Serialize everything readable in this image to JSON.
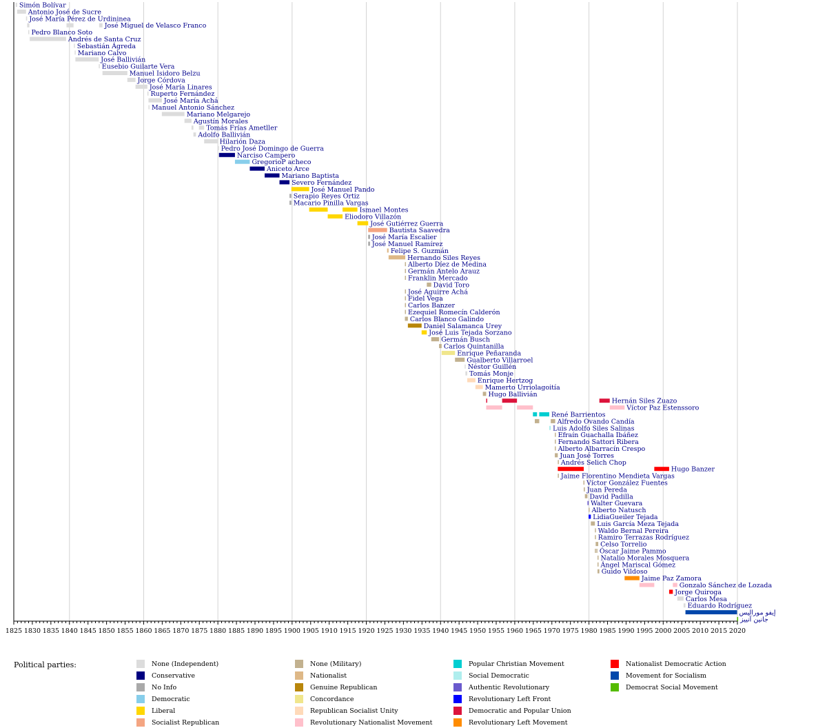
{
  "chart_data": {
    "type": "timeline",
    "x_range": [
      1825,
      2020
    ],
    "ticks": [
      "1825",
      "1830",
      "1835",
      "1840",
      "1845",
      "1850",
      "1855",
      "1860",
      "1865",
      "1870",
      "1875",
      "1880",
      "1885",
      "1890",
      "1895",
      "1900",
      "1905",
      "1910",
      "1915",
      "1920",
      "1925",
      "1930",
      "1935",
      "1940",
      "1945",
      "1950",
      "1955",
      "1960",
      "1965",
      "1970",
      "1975",
      "1980",
      "1985",
      "1990",
      "1995",
      "2000",
      "2005",
      "2010",
      "2015",
      "2020"
    ],
    "gridlines": [
      1840,
      1860,
      1880,
      1900,
      1920,
      1940,
      1960,
      1980,
      2000,
      2020
    ],
    "parties": {
      "ind": {
        "name": "None (Independent)",
        "color": "#dcdcdc"
      },
      "con": {
        "name": "Conservative",
        "color": "#000080"
      },
      "noi": {
        "name": "No Info",
        "color": "#a9a9a9"
      },
      "dem": {
        "name": "Democratic",
        "color": "#87ceeb"
      },
      "lib": {
        "name": "Liberal",
        "color": "#ffd700"
      },
      "srep": {
        "name": "Socialist Republican",
        "color": "#f4a582"
      },
      "mil": {
        "name": "None (Military)",
        "color": "#c2b18f"
      },
      "nat": {
        "name": "Nationalist",
        "color": "#deb887"
      },
      "grep": {
        "name": "Genuine Republican",
        "color": "#b8860b"
      },
      "conc": {
        "name": "Concordance",
        "color": "#f0e68c"
      },
      "rsu": {
        "name": "Republican Socialist Unity",
        "color": "#ffdab9"
      },
      "mnr": {
        "name": "Revolutionary Nationalist Movement",
        "color": "#ffc0cb"
      },
      "pcm": {
        "name": "Popular Christian Movement",
        "color": "#00ced1"
      },
      "sdem": {
        "name": "Social Democratic",
        "color": "#afeeee"
      },
      "arev": {
        "name": "Authentic Revolutionary",
        "color": "#6a5acd"
      },
      "rlf": {
        "name": "Revolutionary Left Front",
        "color": "#0000ff"
      },
      "dpu": {
        "name": "Democratic and Popular Union",
        "color": "#dc143c"
      },
      "mir": {
        "name": "Revolutionary Left Movement",
        "color": "#ff8c00"
      },
      "adn": {
        "name": "Nationalist Democratic Action",
        "color": "#ff0000"
      },
      "mas": {
        "name": "Movement for Socialism",
        "color": "#0047ab"
      },
      "dsm": {
        "name": "Democrat Social Movement",
        "color": "#55bb00"
      }
    },
    "presidents": [
      {
        "name": "Simón Bolívar",
        "party": "ind",
        "terms": [
          [
            1825.5,
            1825.9
          ]
        ]
      },
      {
        "name": "Antonio José de Sucre",
        "party": "ind",
        "terms": [
          [
            1825.9,
            1828.3
          ]
        ]
      },
      {
        "name": "José María Pérez de Urdininea",
        "party": "ind",
        "terms": [
          [
            1828.3,
            1828.6
          ]
        ]
      },
      {
        "name": "José Miguel de Velasco Franco",
        "party": "ind",
        "terms": [
          [
            1828.6,
            1829.2
          ],
          [
            1839.2,
            1841.1
          ],
          [
            1848.0,
            1848.9
          ]
        ]
      },
      {
        "name": "Pedro Blanco Soto",
        "party": "ind",
        "terms": [
          [
            1828.9,
            1829.0
          ]
        ]
      },
      {
        "name": "Andrés de Santa Cruz",
        "party": "ind",
        "terms": [
          [
            1829.3,
            1839.1
          ]
        ]
      },
      {
        "name": "Sebastián Ágreda",
        "party": "ind",
        "terms": [
          [
            1841.2,
            1841.4
          ]
        ]
      },
      {
        "name": "Mariano Calvo",
        "party": "ind",
        "terms": [
          [
            1841.4,
            1841.6
          ]
        ]
      },
      {
        "name": "José Ballivián",
        "party": "ind",
        "terms": [
          [
            1841.6,
            1847.9
          ]
        ]
      },
      {
        "name": "Eusebio Guilarte Vera",
        "party": "ind",
        "terms": [
          [
            1847.9,
            1848.0
          ]
        ]
      },
      {
        "name": "Manuel Isidoro Belzu",
        "party": "ind",
        "terms": [
          [
            1848.9,
            1855.6
          ]
        ]
      },
      {
        "name": "Jorge Córdova",
        "party": "ind",
        "terms": [
          [
            1855.6,
            1857.8
          ]
        ]
      },
      {
        "name": "José María Linares",
        "party": "ind",
        "terms": [
          [
            1857.8,
            1861.0
          ]
        ]
      },
      {
        "name": "Ruperto Fernández",
        "party": "ind",
        "terms": [
          [
            1861.0,
            1861.3
          ]
        ]
      },
      {
        "name": "José María Achá",
        "party": "ind",
        "terms": [
          [
            1861.3,
            1864.9
          ]
        ]
      },
      {
        "name": "Manuel Antonio Sánchez",
        "party": "ind",
        "terms": [
          [
            1861.3,
            1861.5
          ]
        ]
      },
      {
        "name": "Mariano Melgarejo",
        "party": "ind",
        "terms": [
          [
            1864.9,
            1871.0
          ]
        ]
      },
      {
        "name": "Agustín Morales",
        "party": "ind",
        "terms": [
          [
            1871.0,
            1872.9
          ]
        ]
      },
      {
        "name": "Tomás Frías Ametller",
        "party": "ind",
        "terms": [
          [
            1872.9,
            1873.4
          ],
          [
            1874.9,
            1876.3
          ]
        ]
      },
      {
        "name": "Adolfo Ballivián",
        "party": "ind",
        "terms": [
          [
            1873.4,
            1874.1
          ]
        ]
      },
      {
        "name": "Hilarión Daza",
        "party": "ind",
        "terms": [
          [
            1876.3,
            1879.9
          ]
        ]
      },
      {
        "name": "Pedro José Domingo de Guerra",
        "party": "ind",
        "terms": [
          [
            1879.9,
            1880.3
          ]
        ]
      },
      {
        "name": "Narciso Campero",
        "party": "con",
        "terms": [
          [
            1880.3,
            1884.6
          ]
        ]
      },
      {
        "name": "GregorioP acheco",
        "party": "dem",
        "terms": [
          [
            1884.6,
            1888.6
          ]
        ]
      },
      {
        "name": "Aniceto Arce",
        "party": "con",
        "terms": [
          [
            1888.6,
            1892.6
          ]
        ]
      },
      {
        "name": "Mariano Baptista",
        "party": "con",
        "terms": [
          [
            1892.6,
            1896.6
          ]
        ]
      },
      {
        "name": "Severo Fernández",
        "party": "con",
        "terms": [
          [
            1896.6,
            1899.3
          ]
        ]
      },
      {
        "name": "José Manuel Pando",
        "party": "lib",
        "terms": [
          [
            1899.8,
            1904.6
          ]
        ]
      },
      {
        "name": "Serapio Reyes Ortiz",
        "party": "noi",
        "terms": [
          [
            1899.3,
            1899.8
          ]
        ]
      },
      {
        "name": "Macario Pinilla Vargas",
        "party": "noi",
        "terms": [
          [
            1899.3,
            1899.8
          ]
        ]
      },
      {
        "name": "Ismael Montes",
        "party": "lib",
        "terms": [
          [
            1904.6,
            1909.6
          ],
          [
            1913.6,
            1917.6
          ]
        ]
      },
      {
        "name": "Eliodoro Villazón",
        "party": "lib",
        "terms": [
          [
            1909.6,
            1913.6
          ]
        ]
      },
      {
        "name": "José Gutiérrez Guerra",
        "party": "lib",
        "terms": [
          [
            1917.6,
            1920.5
          ]
        ]
      },
      {
        "name": "Bautista Saavedra",
        "party": "srep",
        "terms": [
          [
            1920.5,
            1925.6
          ]
        ]
      },
      {
        "name": "José María Escalier",
        "party": "noi",
        "terms": [
          [
            1920.5,
            1921.0
          ]
        ]
      },
      {
        "name": "José Manuel Ramírez",
        "party": "noi",
        "terms": [
          [
            1920.5,
            1921.0
          ]
        ]
      },
      {
        "name": "Felipe S. Guzmán",
        "party": "nat",
        "terms": [
          [
            1925.6,
            1926.0
          ]
        ]
      },
      {
        "name": "Hernando Siles Reyes",
        "party": "nat",
        "terms": [
          [
            1926.0,
            1930.5
          ]
        ]
      },
      {
        "name": "Alberto Díez de Medina",
        "party": "mil",
        "terms": [
          [
            1930.4,
            1930.5
          ]
        ]
      },
      {
        "name": "Germán Antelo Arauz",
        "party": "mil",
        "terms": [
          [
            1930.4,
            1930.5
          ]
        ]
      },
      {
        "name": "Franklin Mercado",
        "party": "mil",
        "terms": [
          [
            1930.4,
            1930.5
          ]
        ]
      },
      {
        "name": "David Toro",
        "party": "mil",
        "terms": [
          [
            1936.3,
            1937.5
          ]
        ]
      },
      {
        "name": "José Aguirre Achá",
        "party": "mil",
        "terms": [
          [
            1930.4,
            1930.5
          ]
        ]
      },
      {
        "name": "Fidel Vega",
        "party": "mil",
        "terms": [
          [
            1930.4,
            1930.5
          ]
        ]
      },
      {
        "name": "Carlos Banzer",
        "party": "mil",
        "terms": [
          [
            1930.4,
            1930.5
          ]
        ]
      },
      {
        "name": "Ezequiel Romecín Calderón",
        "party": "mil",
        "terms": [
          [
            1930.4,
            1930.5
          ]
        ]
      },
      {
        "name": "Carlos Blanco Galindo",
        "party": "mil",
        "terms": [
          [
            1930.4,
            1931.2
          ]
        ]
      },
      {
        "name": "Daniel Salamanca Urey",
        "party": "grep",
        "terms": [
          [
            1931.2,
            1934.9
          ]
        ]
      },
      {
        "name": "José Luis Tejada Sorzano",
        "party": "lib",
        "terms": [
          [
            1934.9,
            1936.3
          ]
        ]
      },
      {
        "name": "Germán Busch",
        "party": "mil",
        "terms": [
          [
            1937.5,
            1939.6
          ]
        ]
      },
      {
        "name": "Carlos Quintanilla",
        "party": "mil",
        "terms": [
          [
            1939.6,
            1940.3
          ]
        ]
      },
      {
        "name": "Enrique Peñaranda",
        "party": "conc",
        "terms": [
          [
            1940.3,
            1943.9
          ]
        ]
      },
      {
        "name": "Gualberto Villarroel",
        "party": "mil",
        "terms": [
          [
            1943.9,
            1946.5
          ]
        ]
      },
      {
        "name": "Néstor Guillén",
        "party": "ind",
        "terms": [
          [
            1946.5,
            1946.7
          ]
        ]
      },
      {
        "name": "Tomás Monje",
        "party": "ind",
        "terms": [
          [
            1946.7,
            1947.2
          ]
        ]
      },
      {
        "name": "Enrique Hertzog",
        "party": "rsu",
        "terms": [
          [
            1947.2,
            1949.4
          ]
        ]
      },
      {
        "name": "Mamerto Urriolagoitía",
        "party": "rsu",
        "terms": [
          [
            1949.4,
            1951.4
          ]
        ]
      },
      {
        "name": "Hugo Ballivián",
        "party": "mil",
        "terms": [
          [
            1951.4,
            1952.3
          ]
        ]
      },
      {
        "name": "Hernán Siles Zuazo",
        "party": "dpu",
        "terms": [
          [
            1952.3,
            1952.4
          ],
          [
            1956.6,
            1960.6
          ],
          [
            1982.8,
            1985.6
          ]
        ]
      },
      {
        "name": "Víctor Paz Estenssoro",
        "party": "mnr",
        "terms": [
          [
            1952.3,
            1956.6
          ],
          [
            1960.6,
            1964.9
          ],
          [
            1985.6,
            1989.6
          ]
        ]
      },
      {
        "name": "René Barrientos",
        "party": "pcm",
        "terms": [
          [
            1964.9,
            1966.0
          ],
          [
            1966.6,
            1969.3
          ]
        ]
      },
      {
        "name": "Alfredo Ovando Candía",
        "party": "mil",
        "terms": [
          [
            1965.4,
            1966.6
          ],
          [
            1969.7,
            1970.9
          ]
        ]
      },
      {
        "name": "Luis Adolfo Siles Salinas",
        "party": "sdem",
        "terms": [
          [
            1969.3,
            1969.7
          ]
        ]
      },
      {
        "name": "Efraín Guachalla Ibáñez",
        "party": "mil",
        "terms": [
          [
            1970.8,
            1970.9
          ]
        ]
      },
      {
        "name": "Fernando Sattori Ribera",
        "party": "mil",
        "terms": [
          [
            1970.8,
            1970.9
          ]
        ]
      },
      {
        "name": "Alberto Albarracín Crespo",
        "party": "mil",
        "terms": [
          [
            1970.8,
            1970.9
          ]
        ]
      },
      {
        "name": "Juan José Torres",
        "party": "mil",
        "terms": [
          [
            1970.8,
            1971.6
          ]
        ]
      },
      {
        "name": "Andrés Selich Chop",
        "party": "mil",
        "terms": [
          [
            1971.6,
            1971.7
          ]
        ]
      },
      {
        "name": "Hugo Banzer",
        "party": "adn",
        "terms": [
          [
            1971.6,
            1978.6
          ],
          [
            1997.6,
            2001.6
          ]
        ]
      },
      {
        "name": "Jaime Florentino Mendieta Vargas",
        "party": "mil",
        "terms": [
          [
            1971.6,
            1971.7
          ]
        ]
      },
      {
        "name": "Víctor González Fuentes",
        "party": "mil",
        "terms": [
          [
            1978.5,
            1978.6
          ]
        ]
      },
      {
        "name": "Juan Pereda",
        "party": "mil",
        "terms": [
          [
            1978.6,
            1978.9
          ]
        ]
      },
      {
        "name": "David Padilla",
        "party": "mil",
        "terms": [
          [
            1978.9,
            1979.6
          ]
        ]
      },
      {
        "name": "Walter Guevara",
        "party": "arev",
        "terms": [
          [
            1979.6,
            1979.9
          ]
        ]
      },
      {
        "name": "Alberto Natusch",
        "party": "mil",
        "terms": [
          [
            1979.9,
            1980.0
          ]
        ]
      },
      {
        "name": "LidiaGueiler Tejada",
        "party": "rlf",
        "terms": [
          [
            1979.9,
            1980.5
          ]
        ]
      },
      {
        "name": "Luis García Meza Tejada",
        "party": "mil",
        "terms": [
          [
            1980.5,
            1981.6
          ]
        ]
      },
      {
        "name": "Waldo Bernal Pereira",
        "party": "mil",
        "terms": [
          [
            1981.6,
            1981.8
          ]
        ]
      },
      {
        "name": "Ramiro Terrazas Rodríguez",
        "party": "mil",
        "terms": [
          [
            1981.6,
            1981.7
          ]
        ]
      },
      {
        "name": "Celso Torrelio",
        "party": "mil",
        "terms": [
          [
            1981.8,
            1982.5
          ]
        ]
      },
      {
        "name": "Óscar Jaime Pammo",
        "party": "mil",
        "terms": [
          [
            1981.6,
            1981.7
          ],
          [
            1982.0,
            1982.1
          ]
        ]
      },
      {
        "name": "Natalio Morales Mosquera",
        "party": "mil",
        "terms": [
          [
            1982.3,
            1982.4
          ]
        ]
      },
      {
        "name": "Ángel Mariscal Gómez",
        "party": "mil",
        "terms": [
          [
            1982.3,
            1982.4
          ]
        ]
      },
      {
        "name": "Guido Vildoso",
        "party": "mil",
        "terms": [
          [
            1982.3,
            1982.8
          ]
        ]
      },
      {
        "name": "Jaime Paz Zamora",
        "party": "mir",
        "terms": [
          [
            1989.6,
            1993.6
          ]
        ]
      },
      {
        "name": "Gonzalo Sánchez de Lozada",
        "party": "mnr",
        "terms": [
          [
            1993.6,
            1997.6
          ],
          [
            2002.6,
            2003.8
          ]
        ]
      },
      {
        "name": "Jorge Quiroga",
        "party": "adn",
        "terms": [
          [
            2001.6,
            2002.6
          ]
        ]
      },
      {
        "name": "Carlos Mesa",
        "party": "ind",
        "terms": [
          [
            2003.8,
            2005.5
          ]
        ]
      },
      {
        "name": "Eduardo Rodríguez",
        "party": "ind",
        "terms": [
          [
            2005.5,
            2006.0
          ]
        ]
      },
      {
        "name": "إيفو موراليس",
        "party": "mas",
        "terms": [
          [
            2006.0,
            2019.9
          ]
        ]
      },
      {
        "name": "جانين آنييز",
        "party": "dsm",
        "terms": [
          [
            2019.9,
            2020.2
          ]
        ]
      }
    ]
  },
  "legend": {
    "title": "Political parties:",
    "items": [
      "ind",
      "con",
      "noi",
      "dem",
      "lib",
      "srep",
      "mil",
      "nat",
      "grep",
      "conc",
      "rsu",
      "mnr",
      "pcm",
      "sdem",
      "arev",
      "rlf",
      "dpu",
      "mir",
      "adn",
      "mas",
      "dsm"
    ]
  }
}
